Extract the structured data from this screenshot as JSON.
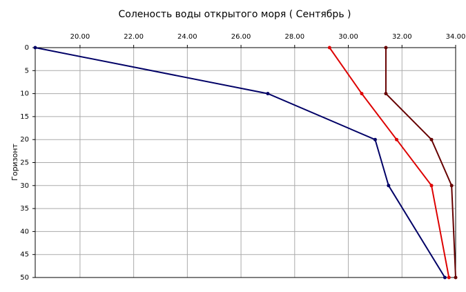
{
  "chart_data": {
    "type": "line",
    "title": "Соленость воды открытого моря    ( Сентябрь )",
    "y_label": "Горизонт",
    "y": [
      0,
      10,
      20,
      30,
      50
    ],
    "series": [
      {
        "color": "#000066",
        "values": [
          18.33,
          27.0,
          31.0,
          31.5,
          33.6
        ]
      },
      {
        "color": "#dd0000",
        "values": [
          29.3,
          30.5,
          31.8,
          33.1,
          33.75
        ]
      },
      {
        "color": "#660000",
        "values": [
          31.4,
          31.4,
          33.1,
          33.85,
          34.0
        ]
      }
    ],
    "xlim": [
      18.33,
      34
    ],
    "xticks": [
      {
        "value": 20,
        "label": "20.00"
      },
      {
        "value": 22,
        "label": "22.00"
      },
      {
        "value": 24,
        "label": "24.00"
      },
      {
        "value": 26,
        "label": "26.00"
      },
      {
        "value": 28,
        "label": "28.00"
      },
      {
        "value": 30,
        "label": "30.00"
      },
      {
        "value": 32,
        "label": "32.00"
      },
      {
        "value": 34,
        "label": "34.00"
      }
    ],
    "ylim": [
      0,
      50
    ],
    "yticks": [
      0,
      5,
      10,
      15,
      20,
      25,
      30,
      35,
      40,
      45,
      50
    ],
    "y_inverted": true,
    "grid": true
  }
}
